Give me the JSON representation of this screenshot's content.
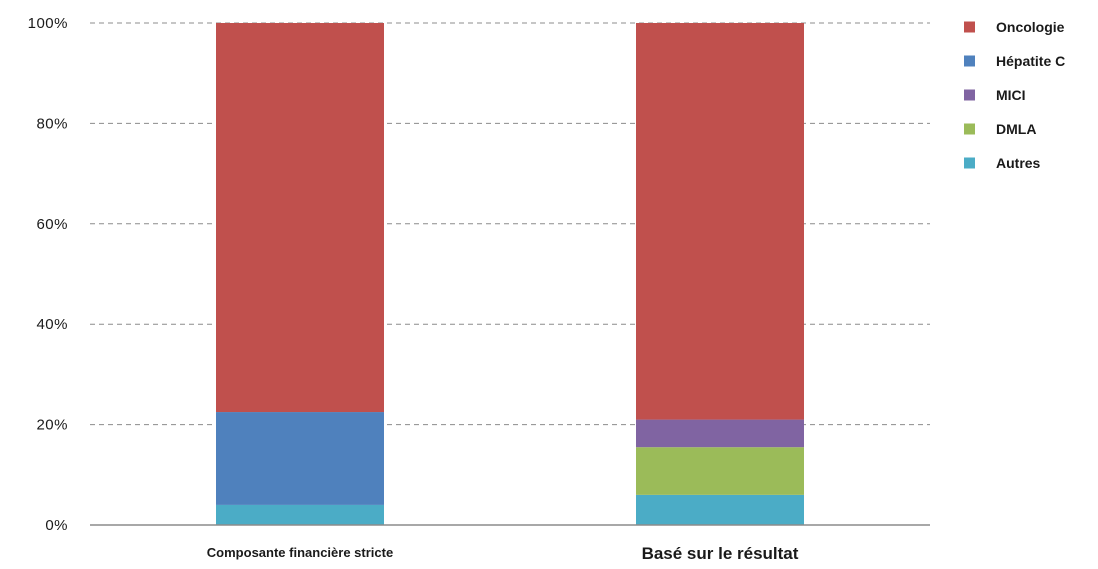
{
  "chart_data": {
    "type": "bar",
    "stacked": true,
    "categories": [
      "Composante financière stricte",
      "Basé sur le résultat"
    ],
    "series": [
      {
        "name": "Autres",
        "color": "#4bacc6",
        "values": [
          4,
          6
        ]
      },
      {
        "name": "DMLA",
        "color": "#9bbb59",
        "values": [
          0,
          9.5
        ]
      },
      {
        "name": "MICI",
        "color": "#8064a2",
        "values": [
          0,
          5.5
        ]
      },
      {
        "name": "Hépatite C",
        "color": "#4f81bd",
        "values": [
          18.5,
          0
        ]
      },
      {
        "name": "Oncologie",
        "color": "#c0504d",
        "values": [
          77.5,
          79
        ]
      }
    ],
    "legend_order": [
      "Oncologie",
      "Hépatite C",
      "MICI",
      "DMLA",
      "Autres"
    ],
    "ylim": [
      0,
      100
    ],
    "yticks": [
      0,
      20,
      40,
      60,
      80,
      100
    ],
    "ytick_labels": [
      "0%",
      "20%",
      "40%",
      "60%",
      "80%",
      "100%"
    ],
    "grid": true,
    "legend_position": "top-right",
    "title": "",
    "xlabel": "",
    "ylabel": ""
  }
}
